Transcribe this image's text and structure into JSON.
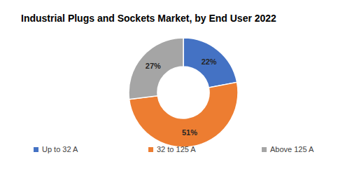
{
  "chart_data": {
    "type": "pie",
    "title": "Industrial Plugs and Sockets Market, by End User 2022",
    "categories": [
      "Up to 32 A",
      "32 to 125 A",
      "Above 125 A"
    ],
    "values": [
      22,
      51,
      27
    ],
    "value_labels": [
      "22%",
      "51%",
      "27%"
    ],
    "colors": [
      "#4472c4",
      "#ed7d31",
      "#a5a5a5"
    ],
    "data_labels": true,
    "legend": "bottom"
  }
}
